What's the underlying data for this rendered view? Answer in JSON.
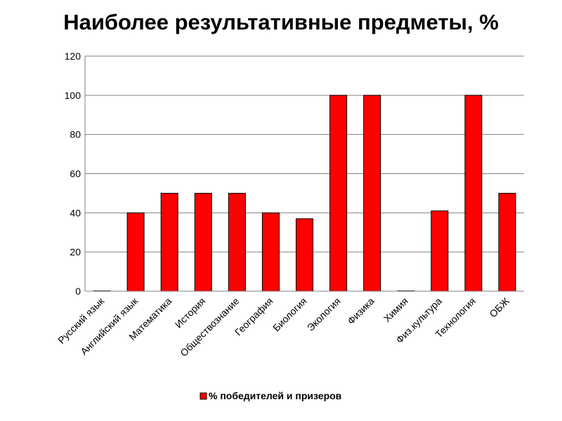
{
  "colors": {
    "bar": "#ff0000",
    "bar_stroke": "#000000",
    "grid": "#808080"
  },
  "chart_data": {
    "type": "bar",
    "title": "Наиболее результативные предметы, %",
    "categories": [
      "Русский язык",
      "Английский язык",
      "Математика",
      "История",
      "Обществознание",
      "География",
      "Биология",
      "Экология",
      "Физика",
      "Химия",
      "Физ.культура",
      "Технология",
      "ОБЖ"
    ],
    "series": [
      {
        "name": "% победителей и призеров",
        "values": [
          0,
          40,
          50,
          50,
          50,
          40,
          37,
          100,
          100,
          0,
          41,
          100,
          50
        ]
      }
    ],
    "ylim": [
      0,
      120
    ],
    "yticks": [
      0,
      20,
      40,
      60,
      80,
      100,
      120
    ],
    "grid": true,
    "legend": "bottom"
  }
}
